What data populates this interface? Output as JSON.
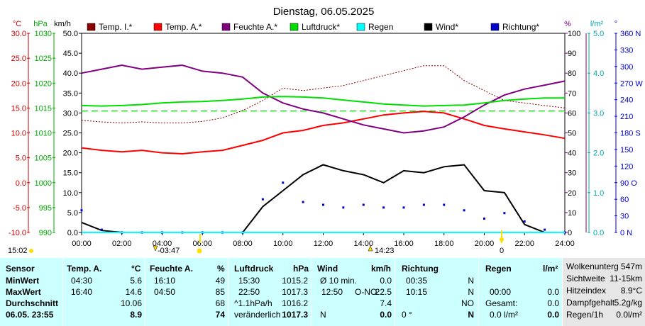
{
  "title": "Dienstag, 06.05.2025",
  "legend": [
    {
      "name": "Temp. I.*",
      "color": "#8b0000"
    },
    {
      "name": "Temp. A.*",
      "color": "#ff0000"
    },
    {
      "name": "Feuchte A.*",
      "color": "#800080"
    },
    {
      "name": "Luftdruck*",
      "color": "#00dd00"
    },
    {
      "name": "Regen",
      "color": "#00ffff"
    },
    {
      "name": "Wind*",
      "color": "#000000"
    },
    {
      "name": "Richtung*",
      "color": "#0000cc"
    }
  ],
  "axes": {
    "left_units": [
      "°C",
      "hPa",
      "km/h"
    ],
    "right_units": [
      "%",
      "l/m²",
      "°"
    ],
    "temp_ticks": [
      "30.0",
      "25.0",
      "20.0",
      "15.0",
      "10.0",
      "5.0",
      "0.0",
      "-5.0",
      "-10.0"
    ],
    "pressure_ticks": [
      "1030",
      "1025",
      "1020",
      "1015",
      "1010",
      "1005",
      "1000",
      "995",
      "990"
    ],
    "wind_ticks": [
      "50.0",
      "45.0",
      "40.0",
      "35.0",
      "30.0",
      "25.0",
      "20.0",
      "15.0",
      "10.0",
      "5.0",
      "0.0"
    ],
    "humidity_ticks": [
      "100",
      "90",
      "80",
      "70",
      "60",
      "50",
      "40",
      "30",
      "20",
      "10",
      "0"
    ],
    "rain_ticks": [
      "5.0",
      "4.0",
      "3.0",
      "2.0",
      "1.0",
      "0.0"
    ],
    "direction_ticks": [
      "360 N",
      "330",
      "300",
      "270 W",
      "240",
      "210",
      "180 S",
      "150",
      "120",
      "90 O",
      "60",
      "30",
      "0 N"
    ],
    "x_ticks": [
      "00:00",
      "02:00",
      "04:00",
      "06:00",
      "08:00",
      "10:00",
      "12:00",
      "14:00",
      "16:00",
      "18:00",
      "20:00",
      "22:00",
      "24:00"
    ]
  },
  "sun_markers": {
    "now": "15:02",
    "sunrise": "03:47",
    "sunset": "14:23",
    "moon": "0"
  },
  "chart_data": {
    "type": "line",
    "x_unit": "hours",
    "x": [
      0,
      1,
      2,
      3,
      4,
      5,
      6,
      7,
      8,
      9,
      10,
      11,
      12,
      13,
      14,
      15,
      16,
      17,
      18,
      19,
      20,
      21,
      22,
      23,
      24
    ],
    "series": [
      {
        "name": "Temp. I.*",
        "axis": "temp_c",
        "style": "dotted",
        "values": [
          12.5,
          12.2,
          12.0,
          12.2,
          12.0,
          12.0,
          12.3,
          13.0,
          14.5,
          16.5,
          19.0,
          18.5,
          19.0,
          19.5,
          20.5,
          21.5,
          22.5,
          23.5,
          23.5,
          20.5,
          18.5,
          16.5,
          16.0,
          15.5,
          15.0
        ]
      },
      {
        "name": "Temp. A.*",
        "axis": "temp_c",
        "values": [
          7.0,
          6.5,
          6.2,
          6.5,
          6.0,
          5.8,
          6.2,
          6.5,
          7.5,
          8.5,
          10.0,
          10.5,
          11.5,
          12.0,
          12.8,
          13.6,
          14.0,
          14.3,
          14.0,
          12.8,
          11.5,
          10.8,
          10.2,
          9.6,
          8.9
        ]
      },
      {
        "name": "Feuchte A.*",
        "axis": "humidity_pct",
        "values": [
          80,
          82,
          84,
          82,
          83,
          84,
          81,
          80,
          78,
          70,
          65,
          62,
          60,
          57,
          54,
          52,
          50,
          51,
          53,
          58,
          64,
          69,
          72,
          74,
          76
        ]
      },
      {
        "name": "Luftdruck*",
        "axis": "pressure_hpa",
        "values": [
          1015.5,
          1015.4,
          1015.5,
          1015.7,
          1016.0,
          1016.2,
          1016.3,
          1016.5,
          1016.8,
          1017.2,
          1017.3,
          1017.2,
          1017.0,
          1016.6,
          1016.2,
          1015.8,
          1015.6,
          1015.4,
          1015.5,
          1015.6,
          1016.0,
          1016.5,
          1016.8,
          1017.0,
          1017.0
        ]
      },
      {
        "name": "Wind*",
        "axis": "wind_kmh",
        "values": [
          2.5,
          0.5,
          0,
          0,
          0,
          0,
          0,
          0,
          0,
          6.5,
          10.5,
          14.5,
          17.0,
          15.5,
          14.5,
          12.5,
          15.5,
          15.0,
          16.5,
          17.0,
          10.5,
          10.0,
          2.0,
          0,
          0
        ]
      },
      {
        "name": "Richtung*",
        "axis": "direction_deg",
        "style": "dots",
        "values": [
          40,
          5,
          0,
          0,
          0,
          0,
          0,
          0,
          0,
          60,
          90,
          55,
          50,
          45,
          50,
          45,
          45,
          50,
          50,
          40,
          25,
          35,
          20,
          5,
          0
        ]
      },
      {
        "name": "Regen",
        "axis": "rain_lm2",
        "values": [
          0,
          0,
          0,
          0,
          0,
          0,
          0,
          0,
          0,
          0,
          0,
          0,
          0,
          0,
          0,
          0,
          0,
          0,
          0,
          0,
          0,
          0,
          0,
          0,
          0
        ]
      }
    ],
    "reference_line": {
      "series": "Luftdruck",
      "value": 1014.4,
      "style": "dashed",
      "color": "#00dd00"
    },
    "ranges": {
      "temp_c": [
        -10,
        30
      ],
      "pressure_hpa": [
        990,
        1030
      ],
      "wind_kmh": [
        0,
        50
      ],
      "humidity_pct": [
        0,
        100
      ],
      "rain_lm2": [
        0,
        5
      ],
      "direction_deg": [
        0,
        360
      ],
      "x": [
        0,
        24
      ]
    }
  },
  "table": {
    "rowlabels": {
      "header": "Sensor",
      "min": "MinWert",
      "max": "MaxWert",
      "avg": "Durchschnitt",
      "now": "06.05. 23:55"
    },
    "temp": {
      "title": "Temp. A.",
      "unit": "°C",
      "min_time": "04:30",
      "min": "5.6",
      "max_time": "16:40",
      "max": "14.6",
      "avg": "10.06",
      "now": "8.9"
    },
    "hum": {
      "title": "Feuchte A.",
      "unit": "%",
      "min_time": "16:10",
      "min": "49",
      "max_time": "04:50",
      "max": "85",
      "avg": "68",
      "now": "74"
    },
    "press": {
      "title": "Luftdruck",
      "unit": "hPa",
      "min_time": "15:30",
      "min": "1015.2",
      "max_time": "22:50",
      "max": "1017.3",
      "trend": "^1.1hPa/h",
      "avg": "1016.2",
      "state": "veränderlich",
      "now": "1017.3"
    },
    "wind": {
      "title": "Wind",
      "unit": "km/h",
      "l1": "Ø 10 min.",
      "v1": "0.0",
      "t2": "12:50",
      "d2": "O-NO",
      "v2": "22.5",
      "avg": "7.4",
      "dir_now": "N",
      "now": "0.0"
    },
    "dir": {
      "title": "Richtung",
      "t1": "00:35",
      "v1": "N",
      "t2": "10:15",
      "v2": "N",
      "avg": "NO",
      "deg_now": "0 °",
      "now": "N"
    },
    "rain": {
      "title": "Regen",
      "unit": "l/m²",
      "t2": "00:00",
      "v2": "0.0",
      "l3": "Gesamt:",
      "v3": "0.0",
      "now_l": "0.0 l/m²",
      "now": "0.0"
    },
    "extra": [
      {
        "label": "Wolkenunterg",
        "value": "547m"
      },
      {
        "label": "Sichtweite",
        "value": "11-15km"
      },
      {
        "label": "Hitzeindex",
        "value": "8.9°C"
      },
      {
        "label": "Dampfgehalt",
        "value": "5.2g/kg"
      },
      {
        "label": "Regen/1h",
        "value": "0.0l/m²"
      }
    ]
  }
}
